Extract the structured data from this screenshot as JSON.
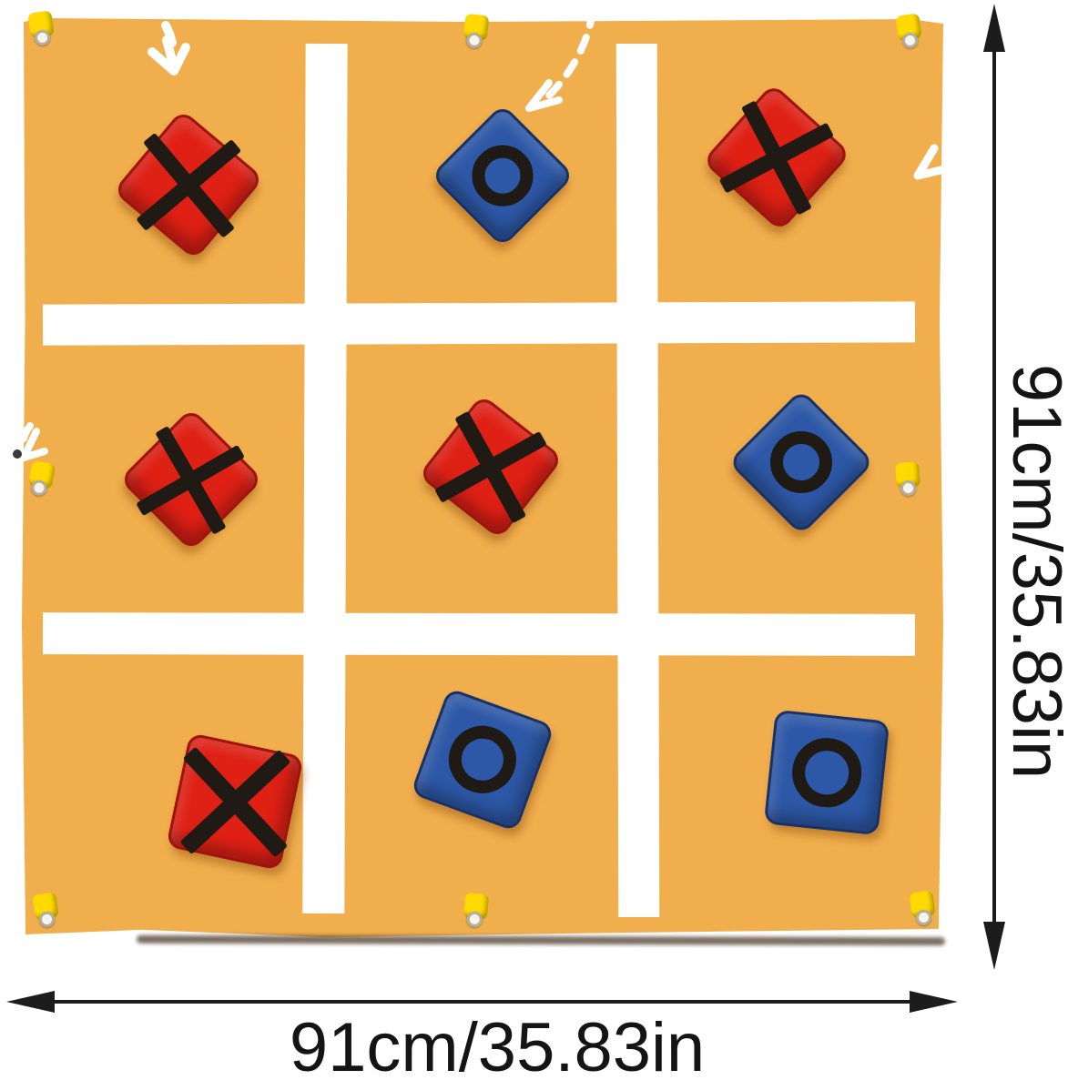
{
  "dimension_labels": {
    "width": "91cm/35.83in",
    "height": "91cm/35.83in"
  },
  "board": {
    "rows": [
      [
        "X",
        "O",
        "X"
      ],
      [
        "X",
        "X",
        "O"
      ],
      [
        "X",
        "O",
        "O"
      ]
    ],
    "x_color": "#df2015",
    "o_color": "#2d58a7"
  },
  "colors": {
    "background": "#ffffff",
    "mat": "#f0ae4d",
    "grid_line": "#ffffff",
    "mark": "#1f1a14",
    "tab": "#ffd900",
    "dimension_line": "#1c1c1c"
  },
  "icons": {
    "pointer_arrows": [
      "toss-arrow-top-left",
      "toss-arrow-top-middle",
      "toss-arrow-right-edge",
      "toss-arrow-left-edge"
    ],
    "tab_count": 8
  }
}
